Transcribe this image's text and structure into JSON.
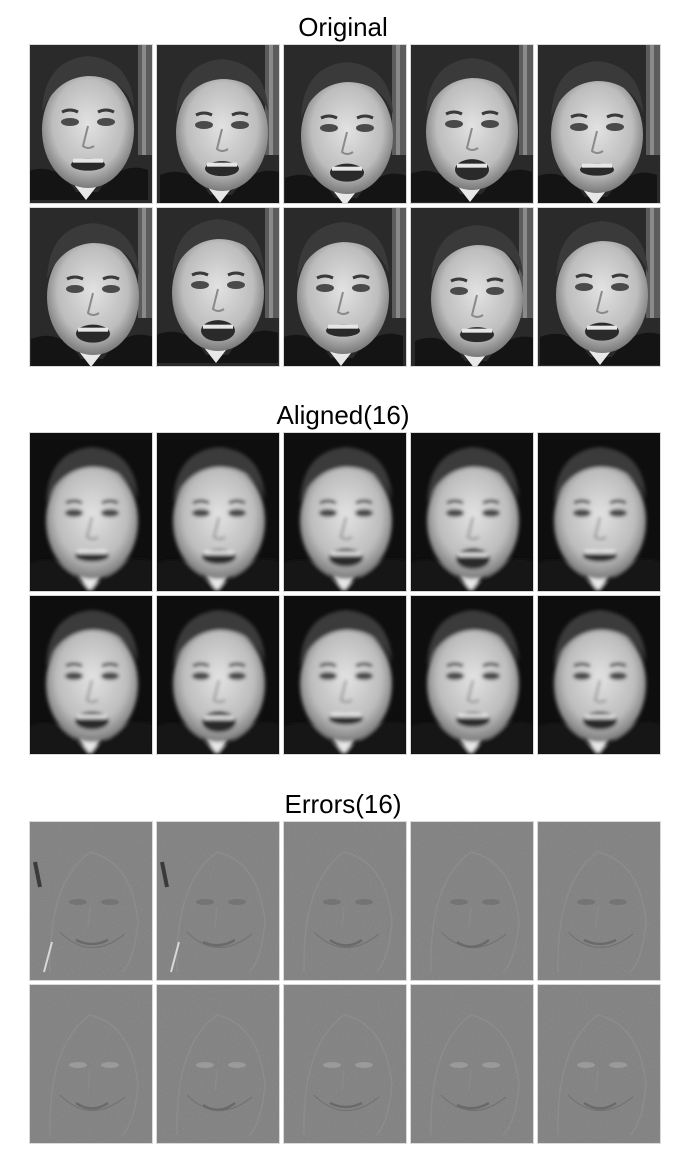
{
  "panels": [
    {
      "title": "Original",
      "style": "original",
      "rows": 2,
      "cols": 5
    },
    {
      "title": "Aligned(16)",
      "style": "aligned",
      "rows": 2,
      "cols": 5
    },
    {
      "title": "Errors(16)",
      "style": "errors",
      "rows": 2,
      "cols": 5
    }
  ],
  "colors": {
    "background": "#ffffff",
    "dark_suit": "#111111",
    "face_light": "#d6d6d6",
    "hair_dark": "#3a3a3a",
    "error_gray": "#7f7f7f"
  }
}
